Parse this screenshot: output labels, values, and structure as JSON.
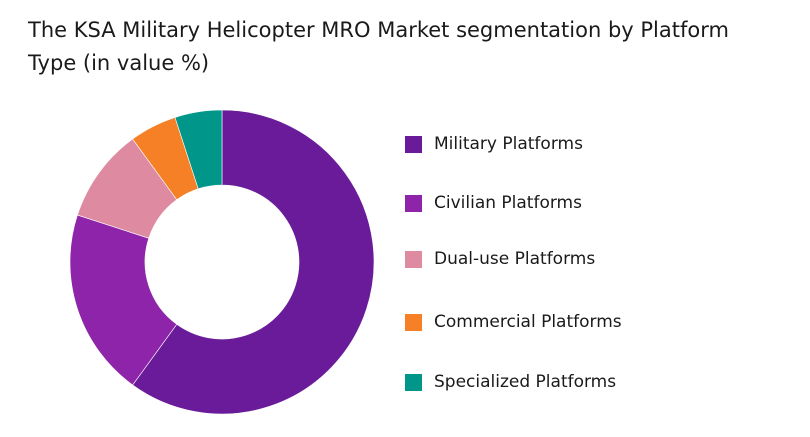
{
  "chart_data": {
    "type": "pie",
    "donut": true,
    "title": "The KSA Military Helicopter MRO Market segmentation by Platform Type (in value %)",
    "legend_position": "right",
    "series": [
      {
        "name": "Military Platforms",
        "value": 60,
        "color": "#6a1b9a"
      },
      {
        "name": "Civilian Platforms",
        "value": 20,
        "color": "#8e24aa"
      },
      {
        "name": "Dual-use Platforms",
        "value": 10,
        "color": "#de8aa0"
      },
      {
        "name": "Commercial Platforms",
        "value": 5,
        "color": "#f58025"
      },
      {
        "name": "Specialized Platforms",
        "value": 5,
        "color": "#00968a"
      }
    ]
  }
}
